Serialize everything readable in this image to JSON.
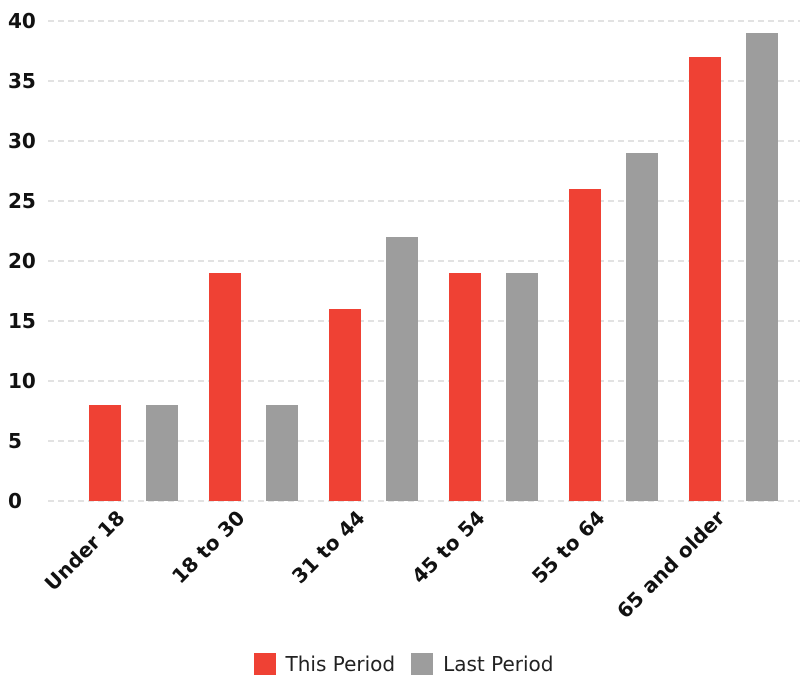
{
  "chart_data": {
    "type": "bar",
    "title": "",
    "xlabel": "",
    "ylabel": "",
    "categories": [
      "Under 18",
      "18 to 30",
      "31 to 44",
      "45 to 54",
      "55 to 64",
      "65 and older"
    ],
    "series": [
      {
        "name": "This Period",
        "color": "#ef4134",
        "values": [
          8,
          19,
          16,
          19,
          26,
          37
        ]
      },
      {
        "name": "Last Period",
        "color": "#9d9d9d",
        "values": [
          8,
          8,
          22,
          19,
          29,
          39
        ]
      }
    ],
    "ylim": [
      0,
      40
    ],
    "yticks": [
      0,
      5,
      10,
      15,
      20,
      25,
      30,
      35,
      40
    ],
    "grid": true,
    "legend_position": "bottom-center"
  }
}
